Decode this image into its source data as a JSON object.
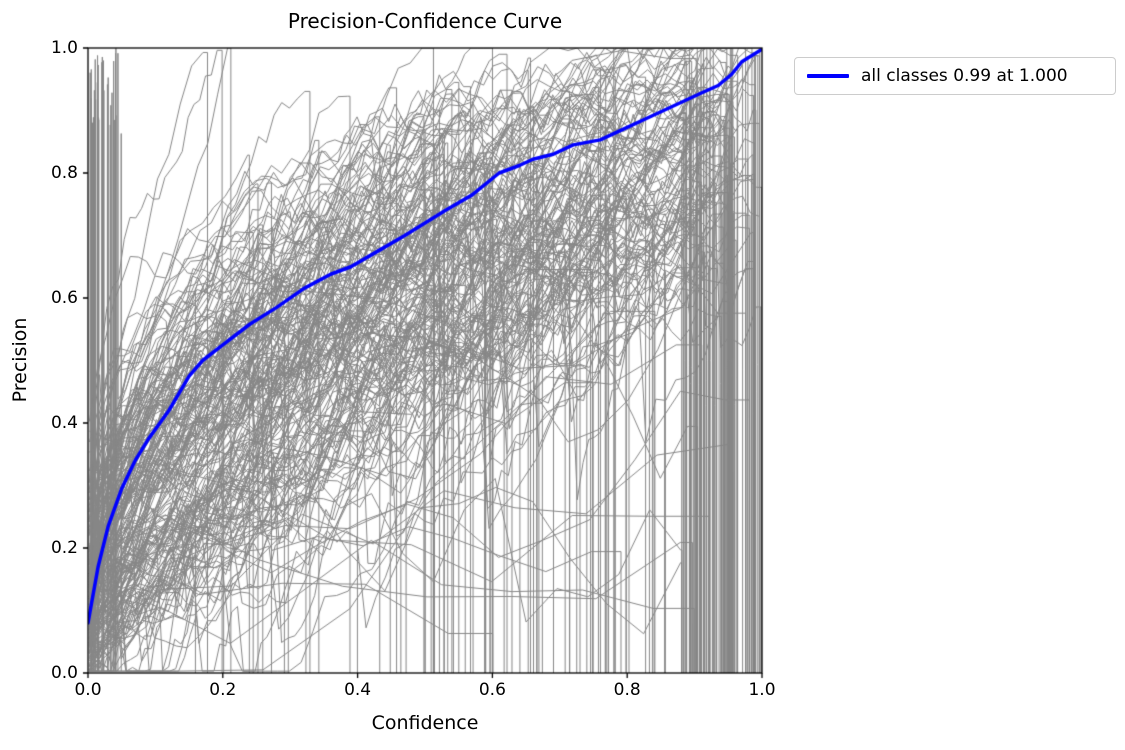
{
  "chart_data": {
    "type": "line",
    "title": "Precision-Confidence Curve",
    "xlabel": "Confidence",
    "ylabel": "Precision",
    "xlim": [
      0.0,
      1.0
    ],
    "ylim": [
      0.0,
      1.0
    ],
    "xticks": [
      "0.0",
      "0.2",
      "0.4",
      "0.6",
      "0.8",
      "1.0"
    ],
    "yticks": [
      "0.0",
      "0.2",
      "0.4",
      "0.6",
      "0.8",
      "1.0"
    ],
    "grid": false,
    "legend_position": "outside upper right",
    "axis_color": "#000000",
    "series": [
      {
        "name": "all classes 0.99 at 1.000",
        "color": "#0000ff",
        "linewidth": 3.5,
        "x": [
          0.0,
          0.005,
          0.015,
          0.03,
          0.05,
          0.07,
          0.09,
          0.12,
          0.15,
          0.17,
          0.2,
          0.24,
          0.28,
          0.32,
          0.36,
          0.39,
          0.43,
          0.47,
          0.5,
          0.53,
          0.57,
          0.61,
          0.64,
          0.66,
          0.69,
          0.72,
          0.76,
          0.8,
          0.83,
          0.87,
          0.91,
          0.935,
          0.955,
          0.97,
          0.985,
          1.0
        ],
        "y": [
          0.08,
          0.11,
          0.17,
          0.235,
          0.295,
          0.34,
          0.375,
          0.42,
          0.475,
          0.5,
          0.525,
          0.558,
          0.585,
          0.615,
          0.638,
          0.65,
          0.675,
          0.7,
          0.72,
          0.74,
          0.765,
          0.8,
          0.812,
          0.822,
          0.83,
          0.845,
          0.853,
          0.873,
          0.888,
          0.908,
          0.928,
          0.94,
          0.958,
          0.978,
          0.988,
          0.998
        ]
      }
    ],
    "background_series": {
      "description": "individual per-class precision-confidence curves (unlabeled), jagged, ending in vertical drops to precision 0 at each class's max confidence",
      "count": 215,
      "color": "#868686",
      "linewidth": 1,
      "seed": 11
    }
  }
}
